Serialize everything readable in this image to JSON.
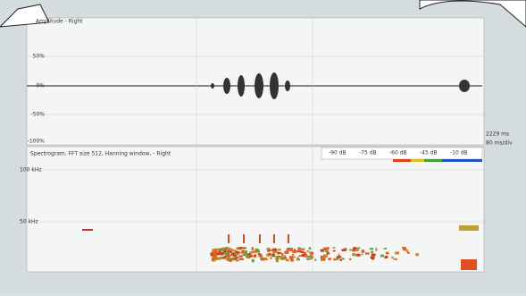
{
  "amplitude_panel": {
    "title": "Amplitude - Right",
    "yticks": [
      "50%",
      "0%",
      "-50%",
      "-100%"
    ]
  },
  "spectrogram_panel": {
    "title": "Spectrogram, FFT size 512, Hanning window, - Right",
    "yticks": [
      "100 kHz",
      "50 kHz"
    ],
    "colorbar": [
      "-90 dB",
      "-75 dB",
      "-60 dB",
      "-45 dB",
      "-10 dB"
    ]
  },
  "status": {
    "time": "2229 ms",
    "scale": "80 ms/div"
  }
}
